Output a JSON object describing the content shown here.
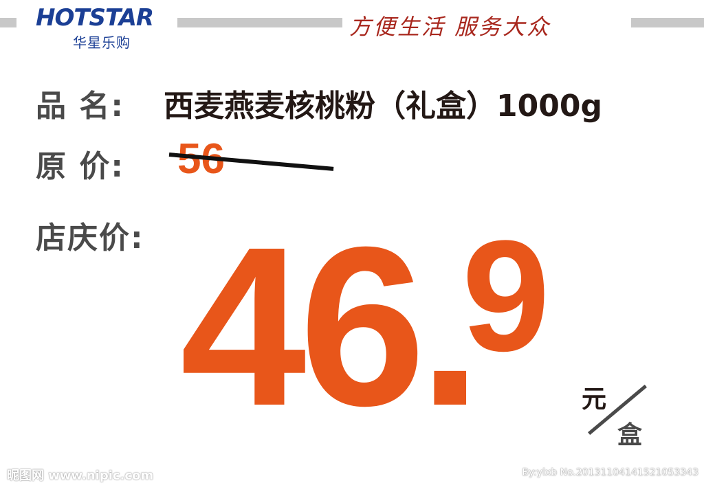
{
  "header": {
    "logo_text": "HOTSTAR",
    "logo_subtitle": "华星乐购",
    "slogan": "方便生活 服务大众"
  },
  "product": {
    "name_label": "品 名:",
    "name_value": "西麦燕麦核桃粉（礼盒）1000g",
    "original_label": "原 价:",
    "original_price": "56",
    "sale_label": "店庆价:",
    "sale_price_main": "46.",
    "sale_price_decimal": "9",
    "unit_top": "元",
    "unit_bottom": "盒"
  },
  "watermark": {
    "left": "昵图网 www.nipic.com",
    "right": "By:ylxb No.20131104141521053343"
  },
  "colors": {
    "price": "#e8561a",
    "brand_blue": "#1b3f95",
    "slogan_red": "#a8271d",
    "label_gray": "#4a4a4a"
  }
}
